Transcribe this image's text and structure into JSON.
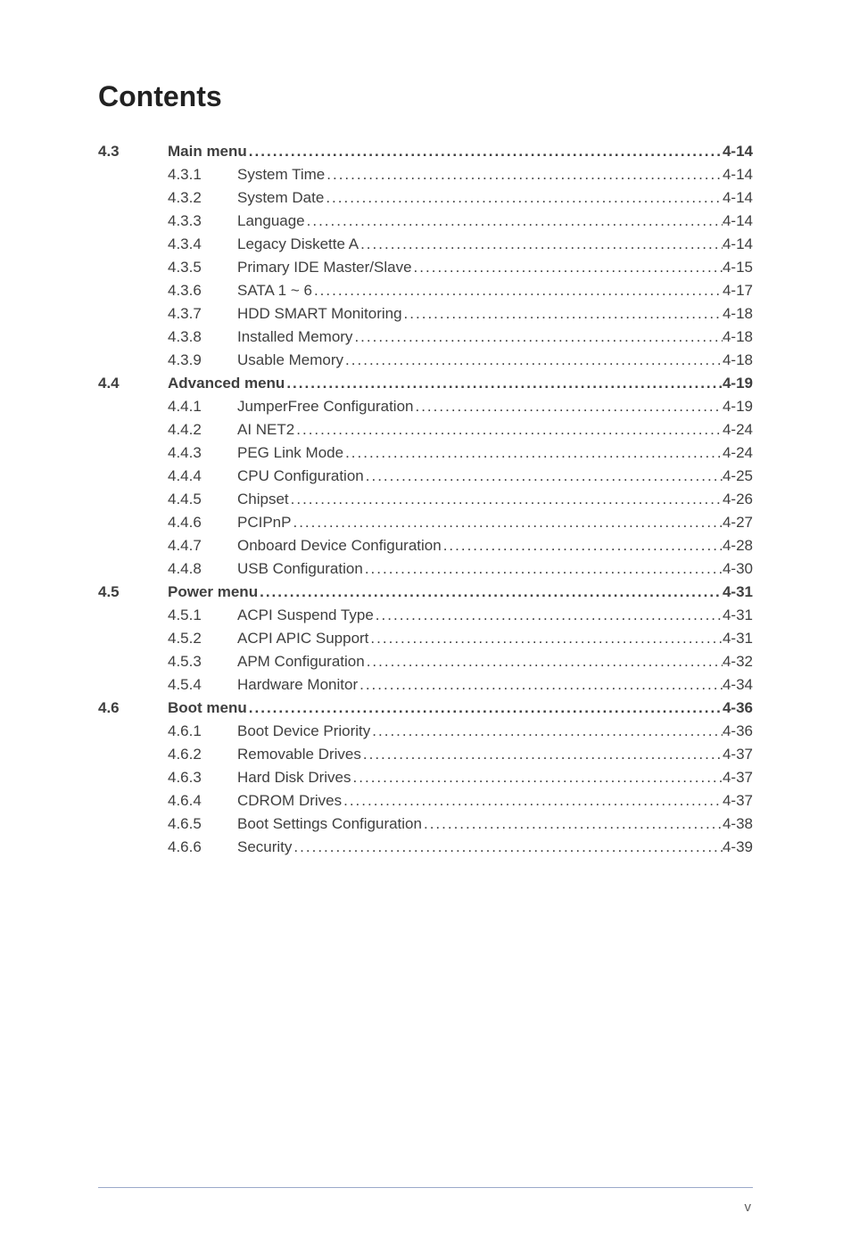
{
  "title": "Contents",
  "page_number_label": "v",
  "dot_leader": ".....................................................................................................................................................",
  "colors": {
    "text": "#3f3f3f",
    "title": "#222222",
    "rule": "#9aa9c9",
    "background": "#ffffff"
  },
  "typography": {
    "title_fontsize": 32,
    "title_weight": 700,
    "body_fontsize": 17,
    "section_weight": 700,
    "body_weight": 400,
    "font_family": "Arial"
  },
  "sections": [
    {
      "number": "4.3",
      "label": "Main menu",
      "page": "4-14",
      "items": [
        {
          "number": "4.3.1",
          "label": "System Time",
          "page": "4-14"
        },
        {
          "number": "4.3.2",
          "label": "System Date",
          "page": "4-14"
        },
        {
          "number": "4.3.3",
          "label": "Language",
          "page": "4-14"
        },
        {
          "number": "4.3.4",
          "label": "Legacy Diskette A",
          "page": "4-14"
        },
        {
          "number": "4.3.5",
          "label": "Primary IDE Master/Slave",
          "page": "4-15"
        },
        {
          "number": "4.3.6",
          "label": "SATA 1 ~ 6",
          "page": "4-17"
        },
        {
          "number": "4.3.7",
          "label": "HDD SMART Monitoring",
          "page": "4-18"
        },
        {
          "number": "4.3.8",
          "label": "Installed Memory",
          "page": "4-18"
        },
        {
          "number": "4.3.9",
          "label": "Usable Memory",
          "page": "4-18"
        }
      ]
    },
    {
      "number": "4.4",
      "label": "Advanced menu",
      "page": "4-19",
      "items": [
        {
          "number": "4.4.1",
          "label": "JumperFree Configuration",
          "page": "4-19"
        },
        {
          "number": "4.4.2",
          "label": "AI NET2",
          "page": "4-24"
        },
        {
          "number": "4.4.3",
          "label": "PEG Link Mode",
          "page": "4-24"
        },
        {
          "number": "4.4.4",
          "label": "CPU Configuration",
          "page": "4-25"
        },
        {
          "number": "4.4.5",
          "label": "Chipset",
          "page": "4-26"
        },
        {
          "number": "4.4.6",
          "label": "PCIPnP",
          "page": "4-27"
        },
        {
          "number": "4.4.7",
          "label": "Onboard Device Configuration",
          "page": "4-28"
        },
        {
          "number": "4.4.8",
          "label": "USB Configuration",
          "page": "4-30"
        }
      ]
    },
    {
      "number": "4.5",
      "label": "Power menu",
      "page": "4-31",
      "items": [
        {
          "number": "4.5.1",
          "label": "ACPI Suspend Type",
          "page": "4-31"
        },
        {
          "number": "4.5.2",
          "label": "ACPI APIC Support",
          "page": "4-31"
        },
        {
          "number": "4.5.3",
          "label": "APM Configuration",
          "page": "4-32"
        },
        {
          "number": "4.5.4",
          "label": "Hardware Monitor",
          "page": "4-34"
        }
      ]
    },
    {
      "number": "4.6",
      "label": "Boot menu",
      "page": "4-36",
      "items": [
        {
          "number": "4.6.1",
          "label": "Boot Device Priority",
          "page": "4-36"
        },
        {
          "number": "4.6.2",
          "label": "Removable Drives",
          "page": "4-37"
        },
        {
          "number": "4.6.3",
          "label": "Hard Disk Drives",
          "page": "4-37"
        },
        {
          "number": "4.6.4",
          "label": "CDROM Drives",
          "page": "4-37"
        },
        {
          "number": "4.6.5",
          "label": "Boot Settings Configuration",
          "page": "4-38"
        },
        {
          "number": "4.6.6",
          "label": "Security",
          "page": "4-39"
        }
      ]
    }
  ]
}
